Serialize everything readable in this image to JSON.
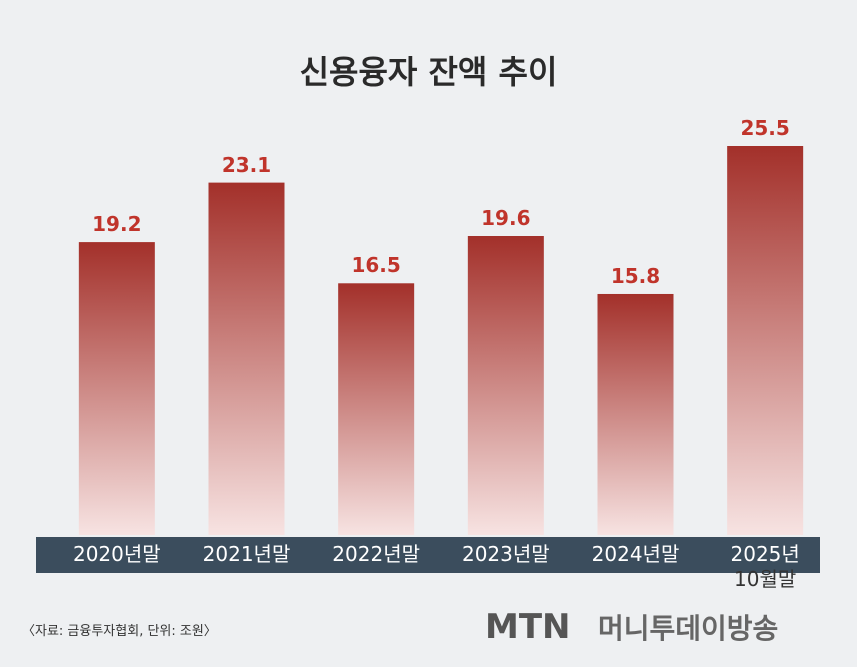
{
  "chart_data": {
    "type": "bar",
    "title": "신용융자 잔액 추이",
    "categories": [
      "2020년말",
      "2021년말",
      "2022년말",
      "2023년말",
      "2024년말",
      "2025년\n10월말"
    ],
    "values": [
      19.2,
      23.1,
      16.5,
      19.6,
      15.8,
      25.5
    ],
    "color": "#a3302a",
    "label_color": "#c0342b"
  },
  "source": "〈자료: 금융투자협회, 단위: 조원〉",
  "logo": {
    "mark": "MTN",
    "name": "머니투데이방송"
  }
}
